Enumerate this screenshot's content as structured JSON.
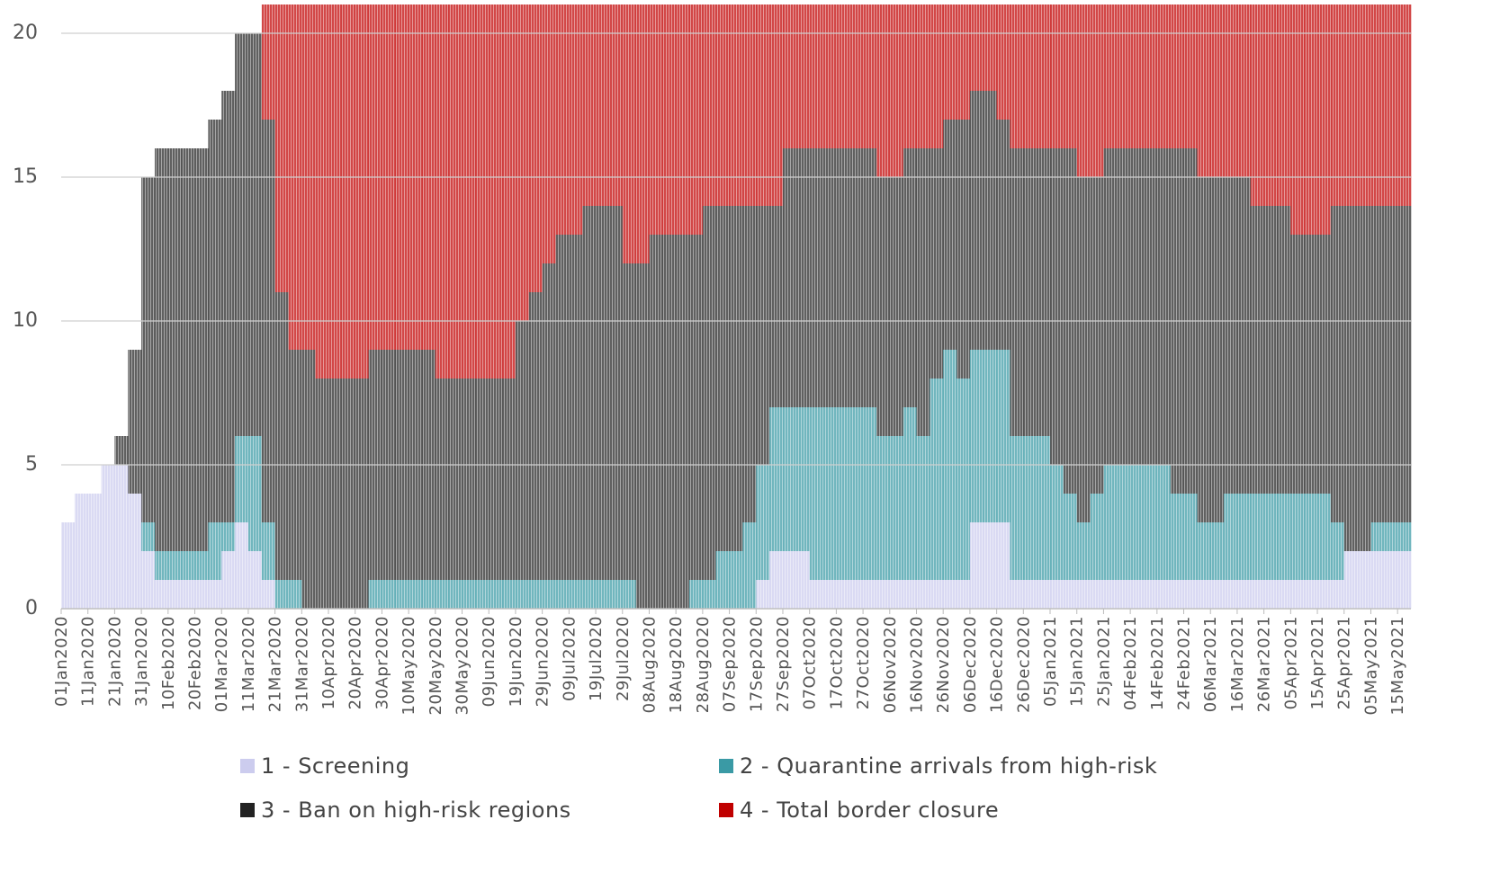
{
  "chart_data": {
    "type": "bar",
    "stacked": true,
    "categories": [
      "01Jan2020",
      null,
      "11Jan2020",
      null,
      "21Jan2020",
      null,
      "31Jan2020",
      null,
      "10Feb2020",
      null,
      "20Feb2020",
      null,
      "01Mar2020",
      null,
      "11Mar2020",
      null,
      "21Mar2020",
      null,
      "31Mar2020",
      null,
      "10Apr2020",
      null,
      "20Apr2020",
      null,
      "30Apr2020",
      null,
      "10May2020",
      null,
      "20May2020",
      null,
      "30May2020",
      null,
      "09Jun2020",
      null,
      "19Jun2020",
      null,
      "29Jun2020",
      null,
      "09Jul2020",
      null,
      "19Jul2020",
      null,
      "29Jul2020",
      null,
      "08Aug2020",
      null,
      "18Aug2020",
      null,
      "28Aug2020",
      null,
      "07Sep2020",
      null,
      "17Sep2020",
      null,
      "27Sep2020",
      null,
      "07Oct2020",
      null,
      "17Oct2020",
      null,
      "27Oct2020",
      null,
      "06Nov2020",
      null,
      "16Nov2020",
      null,
      "26Nov2020",
      null,
      "06Dec2020",
      null,
      "16Dec2020",
      null,
      "26Dec2020",
      null,
      "05Jan2021",
      null,
      "15Jan2021",
      null,
      "25Jan2021",
      null,
      "04Feb2021",
      null,
      "14Feb2021",
      null,
      "24Feb2021",
      null,
      "06Mar2021",
      null,
      "16Mar2021",
      null,
      "26Mar2021",
      null,
      "05Apr2021",
      null,
      "15Apr2021",
      null,
      "25Apr2021",
      null,
      "05May2021",
      null,
      "15May2021"
    ],
    "series": [
      {
        "name": "1 - Screening",
        "color": "#ccccee",
        "values": [
          3,
          4,
          4,
          5,
          5,
          4,
          2,
          1,
          1,
          1,
          1,
          1,
          2,
          3,
          2,
          1,
          0,
          0,
          0,
          0,
          0,
          0,
          0,
          0,
          0,
          0,
          0,
          0,
          0,
          0,
          0,
          0,
          0,
          0,
          0,
          0,
          0,
          0,
          0,
          0,
          0,
          0,
          0,
          0,
          0,
          0,
          0,
          0,
          0,
          0,
          0,
          0,
          1,
          2,
          2,
          2,
          1,
          1,
          1,
          1,
          1,
          1,
          1,
          1,
          1,
          1,
          1,
          1,
          3,
          3,
          3,
          1,
          1,
          1,
          1,
          1,
          1,
          1,
          1,
          1,
          1,
          1,
          1,
          1,
          1,
          1,
          1,
          1,
          1,
          1,
          1,
          1,
          1,
          1,
          1,
          1,
          2,
          2,
          2,
          2,
          2
        ]
      },
      {
        "name": "2 - Quarantine arrivals from high-risk",
        "color": "#3a9aa5",
        "values": [
          0,
          0,
          0,
          0,
          0,
          0,
          1,
          1,
          1,
          1,
          1,
          2,
          1,
          3,
          4,
          2,
          1,
          1,
          0,
          0,
          0,
          0,
          0,
          1,
          1,
          1,
          1,
          1,
          1,
          1,
          1,
          1,
          1,
          1,
          1,
          1,
          1,
          1,
          1,
          1,
          1,
          1,
          1,
          0,
          0,
          0,
          0,
          1,
          1,
          2,
          2,
          3,
          4,
          5,
          5,
          5,
          6,
          6,
          6,
          6,
          6,
          5,
          5,
          6,
          5,
          7,
          8,
          7,
          6,
          6,
          6,
          5,
          5,
          5,
          4,
          3,
          2,
          3,
          4,
          4,
          4,
          4,
          4,
          3,
          3,
          2,
          2,
          3,
          3,
          3,
          3,
          3,
          3,
          3,
          3,
          2,
          0,
          0,
          1,
          1,
          1
        ]
      },
      {
        "name": "3 - Ban on high-risk regions",
        "color": "#222222",
        "values": [
          0,
          0,
          0,
          0,
          1,
          5,
          12,
          14,
          14,
          14,
          14,
          14,
          15,
          14,
          14,
          14,
          10,
          8,
          9,
          8,
          8,
          8,
          8,
          8,
          8,
          8,
          8,
          8,
          7,
          7,
          7,
          7,
          7,
          7,
          9,
          10,
          11,
          12,
          12,
          13,
          13,
          13,
          11,
          12,
          13,
          13,
          13,
          12,
          13,
          12,
          12,
          11,
          9,
          7,
          9,
          9,
          9,
          9,
          9,
          9,
          9,
          9,
          9,
          9,
          10,
          8,
          8,
          9,
          9,
          9,
          8,
          10,
          10,
          10,
          11,
          12,
          12,
          11,
          11,
          11,
          11,
          11,
          11,
          12,
          12,
          12,
          12,
          11,
          11,
          10,
          10,
          10,
          9,
          9,
          9,
          11,
          12,
          12,
          11,
          11,
          11
        ]
      },
      {
        "name": "4 - Total border closure",
        "color": "#c00000",
        "values": [
          0,
          0,
          0,
          0,
          0,
          0,
          0,
          0,
          0,
          0,
          0,
          0,
          0,
          0,
          0,
          4,
          10,
          12,
          12,
          13,
          13,
          13,
          13,
          12,
          12,
          12,
          12,
          12,
          13,
          13,
          13,
          13,
          13,
          13,
          11,
          10,
          9,
          8,
          8,
          7,
          7,
          7,
          9,
          9,
          8,
          8,
          8,
          8,
          7,
          7,
          7,
          7,
          7,
          7,
          5,
          5,
          5,
          5,
          5,
          5,
          5,
          6,
          6,
          5,
          5,
          5,
          4,
          4,
          3,
          3,
          4,
          5,
          5,
          5,
          5,
          5,
          6,
          6,
          5,
          5,
          5,
          5,
          5,
          5,
          5,
          6,
          6,
          6,
          6,
          7,
          7,
          7,
          8,
          8,
          8,
          7,
          7,
          7,
          7,
          7,
          7
        ]
      }
    ],
    "ylim": [
      0,
      21
    ],
    "yticks": [
      0,
      5,
      10,
      15,
      20
    ],
    "grid": true
  }
}
